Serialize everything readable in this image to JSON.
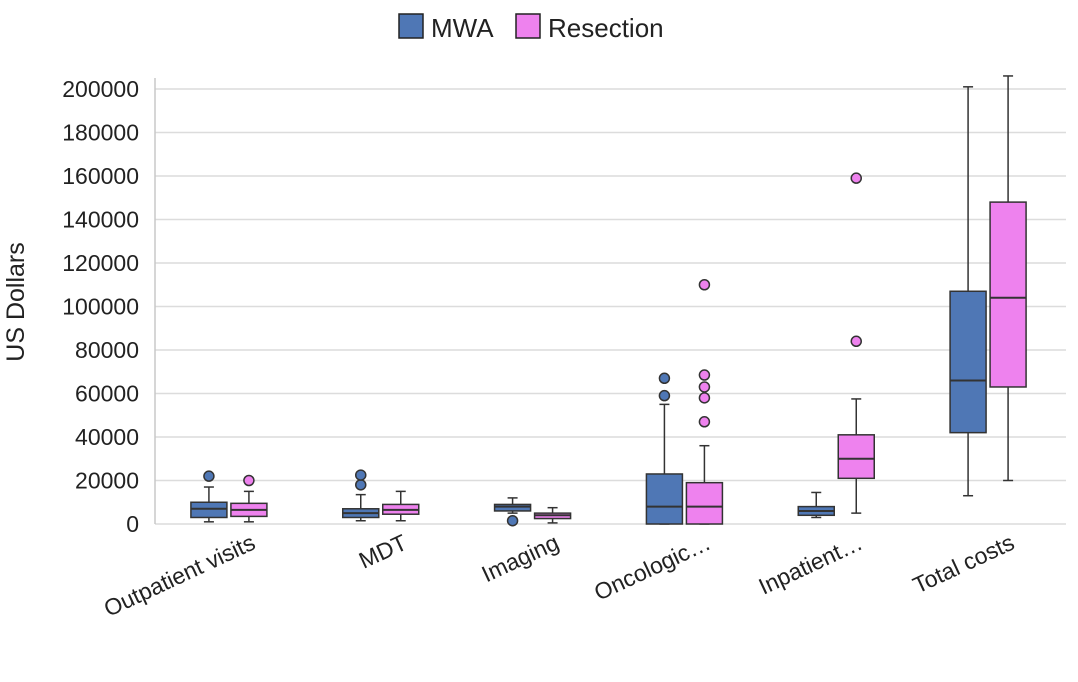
{
  "chart_data": {
    "type": "boxplot",
    "title": "",
    "xlabel": "",
    "ylabel": "US Dollars",
    "ylim": [
      0,
      200000
    ],
    "yticks": [
      0,
      20000,
      40000,
      60000,
      80000,
      100000,
      120000,
      140000,
      160000,
      180000,
      200000
    ],
    "grid": true,
    "legend_position": "top-center",
    "categories": [
      "Outpatient visits",
      "MDT",
      "Imaging",
      "Oncologic…",
      "Inpatient…",
      "Total costs"
    ],
    "series": [
      {
        "name": "MWA",
        "color": "#4f77b5",
        "boxes": [
          {
            "whisker_low": 1000,
            "q1": 3000,
            "median": 7000,
            "q3": 10000,
            "whisker_high": 17000,
            "outliers": [
              22000
            ]
          },
          {
            "whisker_low": 1500,
            "q1": 3000,
            "median": 5000,
            "q3": 7000,
            "whisker_high": 13500,
            "outliers": [
              18000,
              22500
            ]
          },
          {
            "whisker_low": 5000,
            "q1": 6000,
            "median": 8000,
            "q3": 9000,
            "whisker_high": 12000,
            "outliers": [
              1500
            ]
          },
          {
            "whisker_low": 0,
            "q1": 0,
            "median": 8000,
            "q3": 23000,
            "whisker_high": 55000,
            "outliers": [
              59000,
              67000
            ]
          },
          {
            "whisker_low": 3000,
            "q1": 4000,
            "median": 6000,
            "q3": 8000,
            "whisker_high": 14500,
            "outliers": []
          },
          {
            "whisker_low": 13000,
            "q1": 42000,
            "median": 66000,
            "q3": 107000,
            "whisker_high": 201000,
            "outliers": []
          }
        ]
      },
      {
        "name": "Resection",
        "color": "#ee82ee",
        "boxes": [
          {
            "whisker_low": 1000,
            "q1": 3500,
            "median": 6500,
            "q3": 9500,
            "whisker_high": 15000,
            "outliers": [
              20000
            ]
          },
          {
            "whisker_low": 1500,
            "q1": 4500,
            "median": 6500,
            "q3": 9000,
            "whisker_high": 15000,
            "outliers": []
          },
          {
            "whisker_low": 500,
            "q1": 2500,
            "median": 4000,
            "q3": 5000,
            "whisker_high": 7500,
            "outliers": []
          },
          {
            "whisker_low": 0,
            "q1": 0,
            "median": 8000,
            "q3": 19000,
            "whisker_high": 36000,
            "outliers": [
              47000,
              58000,
              63000,
              68500,
              110000
            ]
          },
          {
            "whisker_low": 5000,
            "q1": 21000,
            "median": 30000,
            "q3": 41000,
            "whisker_high": 57500,
            "outliers": [
              84000,
              159000
            ]
          },
          {
            "whisker_low": 20000,
            "q1": 63000,
            "median": 104000,
            "q3": 148000,
            "whisker_high": 206000,
            "outliers": []
          }
        ]
      }
    ]
  }
}
